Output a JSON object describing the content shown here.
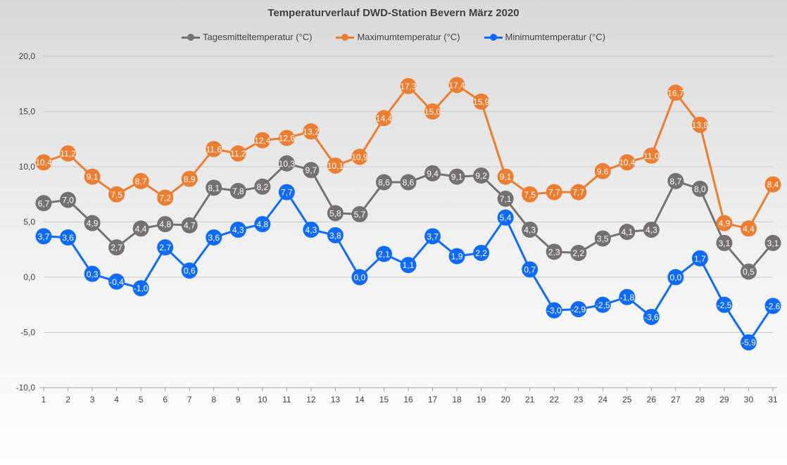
{
  "chart_data": {
    "type": "line",
    "title": "Temperaturverlauf DWD-Station Bevern März 2020",
    "xlabel": "",
    "ylabel": "",
    "ylim": [
      -10,
      20
    ],
    "y_ticks": [
      "-10,0",
      "-5,0",
      "0,0",
      "5,0",
      "10,0",
      "15,0",
      "20,0"
    ],
    "grid": true,
    "legend_position": "top",
    "categories": [
      "1",
      "2",
      "3",
      "4",
      "5",
      "6",
      "7",
      "8",
      "9",
      "10",
      "11",
      "12",
      "13",
      "14",
      "15",
      "16",
      "17",
      "18",
      "19",
      "20",
      "21",
      "22",
      "23",
      "24",
      "25",
      "26",
      "27",
      "28",
      "29",
      "30",
      "31"
    ],
    "series": [
      {
        "name": "Tagesmitteltemperatur (°C)",
        "color": "#757171",
        "values": [
          6.7,
          7.0,
          4.9,
          2.7,
          4.4,
          4.8,
          4.7,
          8.1,
          7.8,
          8.2,
          10.3,
          9.7,
          5.8,
          5.7,
          8.6,
          8.6,
          9.4,
          9.1,
          9.2,
          7.1,
          4.3,
          2.3,
          2.2,
          3.5,
          4.1,
          4.3,
          8.7,
          8.0,
          3.1,
          0.5,
          3.1
        ]
      },
      {
        "name": "Maximumtemperatur (°C)",
        "color": "#ed7d31",
        "values": [
          10.4,
          11.2,
          9.1,
          7.5,
          8.7,
          7.2,
          8.9,
          11.6,
          11.2,
          12.4,
          12.6,
          13.2,
          10.1,
          10.9,
          14.4,
          17.3,
          15.0,
          17.4,
          15.9,
          9.1,
          7.5,
          7.7,
          7.7,
          9.6,
          10.4,
          11.0,
          16.7,
          13.8,
          4.9,
          4.4,
          8.4
        ]
      },
      {
        "name": "Minimumtemperatur (°C)",
        "color": "#0f6bff",
        "values": [
          3.7,
          3.6,
          0.3,
          -0.4,
          -1.0,
          2.7,
          0.6,
          3.6,
          4.3,
          4.8,
          7.7,
          4.3,
          3.8,
          0.0,
          2.1,
          1.1,
          3.7,
          1.9,
          2.2,
          5.4,
          0.7,
          -3.0,
          -2.9,
          -2.5,
          -1.8,
          -3.6,
          0.0,
          1.7,
          -2.5,
          -5.9,
          -2.6
        ]
      }
    ]
  }
}
